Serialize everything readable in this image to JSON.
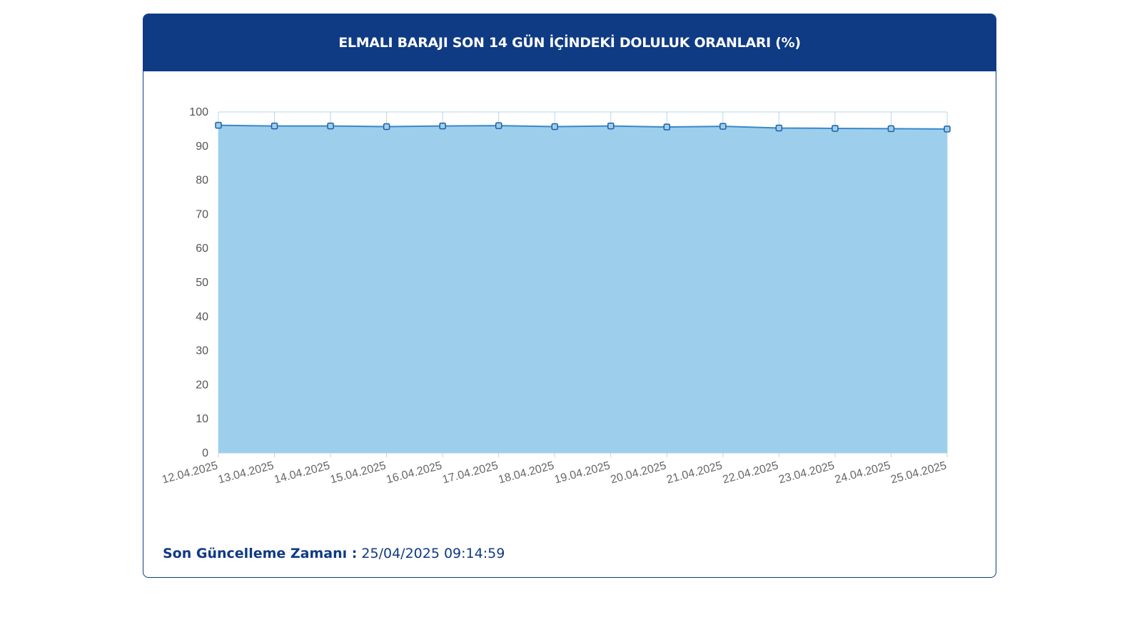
{
  "card": {
    "title": "ELMALI BARAJI SON 14 GÜN İÇİNDEKİ DOLULUK ORANLARI (%)"
  },
  "update": {
    "label": "Son Güncelleme Zamanı :",
    "value": "25/04/2025 09:14:59"
  },
  "colors": {
    "header": "#0f3a84",
    "area_fill": "#9dcfec",
    "line": "#3a88c8",
    "marker_stroke": "#1f5fa3",
    "grid": "#b9d7ea"
  },
  "chart_data": {
    "type": "area",
    "categories": [
      "12.04.2025",
      "13.04.2025",
      "14.04.2025",
      "15.04.2025",
      "16.04.2025",
      "17.04.2025",
      "18.04.2025",
      "19.04.2025",
      "20.04.2025",
      "21.04.2025",
      "22.04.2025",
      "23.04.2025",
      "24.04.2025",
      "25.04.2025"
    ],
    "series": [
      {
        "values": [
          96.1,
          95.9,
          95.9,
          95.7,
          95.9,
          96.0,
          95.7,
          95.9,
          95.6,
          95.8,
          95.3,
          95.2,
          95.1,
          95.0
        ]
      }
    ],
    "ylim": [
      0,
      100
    ],
    "yticks": [
      0,
      10,
      20,
      30,
      40,
      50,
      60,
      70,
      80,
      90,
      100
    ],
    "grid": true,
    "legend": "none"
  }
}
